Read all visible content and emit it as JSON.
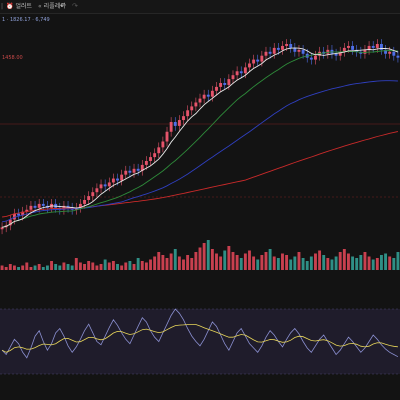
{
  "toolbar": {
    "alert_label": "얼러트",
    "replay_label": "리플레이",
    "undo_icon": "undo-icon",
    "redo_icon": "redo-icon"
  },
  "indicator_legend": {
    "ma_values": "1 · 1826.17 · 6,749",
    "price_tag": "1458.00"
  },
  "colors": {
    "background": "#131313",
    "candle_up": "#e5546b",
    "candle_down": "#4f6fe8",
    "ma_short": "#e8e8e8",
    "ma_mid": "#2e8b3a",
    "ma_long": "#2f3fbf",
    "ma_longest": "#c82a2a",
    "volume_up": "#c8404f",
    "volume_down": "#2f8f86",
    "rsi_line": "#8a8fd0",
    "rsi_signal": "#e8d65a",
    "rsi_band": "#2a2540",
    "level_line": "#7a2020"
  },
  "chart_data": {
    "type": "candlestick",
    "closes": [
      6,
      7,
      10,
      13,
      12,
      14,
      15,
      17,
      16,
      18,
      17,
      16,
      18,
      16,
      15,
      17,
      16,
      15,
      16,
      18,
      20,
      22,
      24,
      26,
      28,
      27,
      29,
      31,
      30,
      33,
      35,
      34,
      36,
      35,
      38,
      40,
      42,
      44,
      47,
      50,
      55,
      60,
      58,
      61,
      63,
      66,
      68,
      70,
      72,
      74,
      73,
      76,
      78,
      80,
      79,
      82,
      84,
      86,
      85,
      88,
      90,
      92,
      91,
      94,
      96,
      95,
      98,
      97,
      99,
      100,
      98,
      96,
      97,
      95,
      93,
      92,
      94,
      96,
      95,
      97,
      95,
      94,
      96,
      98,
      99,
      97,
      96,
      95,
      97,
      99,
      98,
      100,
      97,
      95,
      96,
      94,
      93
    ],
    "volume_levels": [
      3,
      2,
      4,
      3,
      2,
      3,
      5,
      2,
      3,
      4,
      2,
      3,
      6,
      4,
      3,
      5,
      4,
      3,
      8,
      5,
      4,
      6,
      5,
      3,
      4,
      7,
      5,
      6,
      4,
      3,
      5,
      6,
      4,
      8,
      6,
      5,
      7,
      9,
      12,
      10,
      8,
      11,
      14,
      9,
      7,
      10,
      8,
      12,
      15,
      18,
      20,
      14,
      11,
      9,
      13,
      16,
      12,
      10,
      8,
      11,
      13,
      9,
      7,
      10,
      12,
      14,
      9,
      8,
      11,
      10,
      7,
      9,
      12,
      8,
      6,
      9,
      11,
      13,
      10,
      8,
      7,
      9,
      12,
      14,
      11,
      9,
      8,
      10,
      12,
      9,
      7,
      8,
      10,
      11,
      9,
      8,
      12
    ],
    "rsi_values": [
      42,
      38,
      45,
      52,
      48,
      40,
      35,
      44,
      55,
      60,
      50,
      42,
      48,
      58,
      62,
      55,
      46,
      40,
      45,
      52,
      60,
      66,
      58,
      50,
      47,
      55,
      63,
      70,
      65,
      58,
      52,
      48,
      56,
      64,
      72,
      68,
      60,
      54,
      50,
      58,
      66,
      74,
      80,
      76,
      70,
      62,
      55,
      50,
      46,
      52,
      60,
      68,
      64,
      56,
      48,
      42,
      50,
      58,
      62,
      55,
      48,
      44,
      40,
      46,
      54,
      60,
      56,
      50,
      45,
      52,
      58,
      62,
      57,
      50,
      44,
      40,
      46,
      52,
      56,
      50,
      44,
      38,
      42,
      48,
      54,
      50,
      45,
      40,
      44,
      50,
      56,
      52,
      47,
      43,
      40,
      38,
      36
    ],
    "grid": false
  }
}
